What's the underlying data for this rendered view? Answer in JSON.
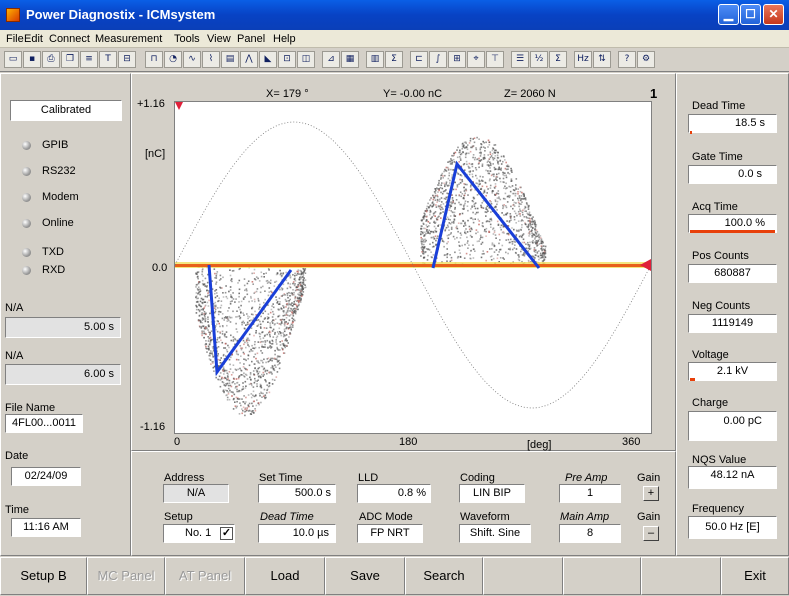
{
  "window": {
    "title": "Power Diagnostix - ICMsystem"
  },
  "menu": [
    "File",
    "Edit",
    "Connect",
    "Measurement",
    "Tools",
    "View",
    "Panel",
    "Help"
  ],
  "left": {
    "status": "Calibrated",
    "leds": [
      "GPIB",
      "RS232",
      "Modem",
      "Online",
      "TXD",
      "RXD"
    ],
    "na1_label": "N/A",
    "na1_value": "5.00 s",
    "na2_label": "N/A",
    "na2_value": "6.00 s",
    "file_label": "File Name",
    "file_value": "4FL00...0011",
    "date_label": "Date",
    "date_value": "02/24/09",
    "time_label": "Time",
    "time_value": "11:16 AM"
  },
  "plot": {
    "cursor_x": "X= 179 °",
    "cursor_y": "Y= -0.00 nC",
    "cursor_z": "Z= 2060 N",
    "window_num": "1",
    "y_max": "+1.16",
    "y_min": "-1.16",
    "y_zero": "0.0",
    "y_unit": "[nC]",
    "x_min": "0",
    "x_mid": "180",
    "x_max": "360",
    "x_unit": "[deg]"
  },
  "settings": {
    "address_label": "Address",
    "address_value": "N/A",
    "settime_label": "Set Time",
    "settime_value": "500.0  s",
    "lld_label": "LLD",
    "lld_value": "0.8 %",
    "coding_label": "Coding",
    "coding_value": "LIN BIP",
    "preamp_label": "Pre Amp",
    "preamp_value": "1",
    "gain1_label": "Gain",
    "gain1_btn": "+",
    "setup_label": "Setup",
    "setup_value": "No. 1",
    "deadtime_label": "Dead Time",
    "deadtime_value": "10.0 µs",
    "adc_label": "ADC Mode",
    "adc_value": "FP NRT",
    "waveform_label": "Waveform",
    "waveform_value": "Shift. Sine",
    "mainamp_label": "Main Amp",
    "mainamp_value": "8",
    "gain2_label": "Gain",
    "gain2_btn": "–"
  },
  "right": {
    "dead_time_label": "Dead Time",
    "dead_time_value": "18.5 s",
    "gate_time_label": "Gate Time",
    "gate_time_value": "0.0 s",
    "acq_time_label": "Acq Time",
    "acq_time_value": "100.0 %",
    "pos_counts_label": "Pos Counts",
    "pos_counts_value": "680887",
    "neg_counts_label": "Neg Counts",
    "neg_counts_value": "1119149",
    "voltage_label": "Voltage",
    "voltage_value": "2.1 kV",
    "charge_label": "Charge",
    "charge_value": "0.00 pC",
    "nqs_label": "NQS Value",
    "nqs_value": "48.12 nA",
    "freq_label": "Frequency",
    "freq_value": "50.0 Hz [E]"
  },
  "buttons": [
    "Setup B",
    "MC Panel",
    "AT Panel",
    "Load",
    "Save",
    "Search",
    "",
    "",
    "",
    "Exit"
  ],
  "colors": {
    "accent": "#e8400a",
    "trace": "#1a3fd8",
    "titlebar": "#0a5fe6"
  }
}
